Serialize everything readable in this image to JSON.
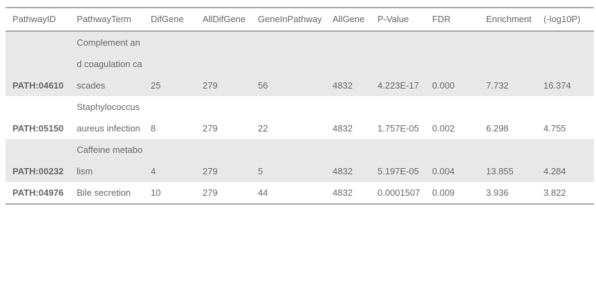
{
  "table": {
    "headers": [
      "PathwayID",
      "PathwayTerm",
      "DifGene",
      "AllDifGene",
      "GeneInPathway",
      "AllGene",
      "P-Value",
      "FDR",
      "Enrichment",
      "(-log10P)"
    ],
    "rows": [
      {
        "pathway_id": "PATH:04610",
        "pathway_term": "Complement and coagulation cascades",
        "dif_gene": "25",
        "all_dif_gene": "279",
        "gene_in_pathway": "56",
        "all_gene": "4832",
        "p_value": "4.223E-17",
        "fdr": "0.000",
        "enrichment": "7.732",
        "neg_log10p": "16.374"
      },
      {
        "pathway_id": "PATH:05150",
        "pathway_term": "Staphylococcus aureus infection",
        "dif_gene": "8",
        "all_dif_gene": "279",
        "gene_in_pathway": "22",
        "all_gene": "4832",
        "p_value": "1.757E-05",
        "fdr": "0.002",
        "enrichment": "6.298",
        "neg_log10p": "4.755"
      },
      {
        "pathway_id": "PATH:00232",
        "pathway_term": "Caffeine metabolism",
        "dif_gene": "4",
        "all_dif_gene": "279",
        "gene_in_pathway": "5",
        "all_gene": "4832",
        "p_value": "5.197E-05",
        "fdr": "0.004",
        "enrichment": "13.855",
        "neg_log10p": "4.284"
      },
      {
        "pathway_id": "PATH:04976",
        "pathway_term": "Bile secretion",
        "dif_gene": "10",
        "all_dif_gene": "279",
        "gene_in_pathway": "44",
        "all_gene": "4832",
        "p_value": "0.0001507",
        "fdr": "0.009",
        "enrichment": "3.936",
        "neg_log10p": "3.822"
      }
    ]
  }
}
